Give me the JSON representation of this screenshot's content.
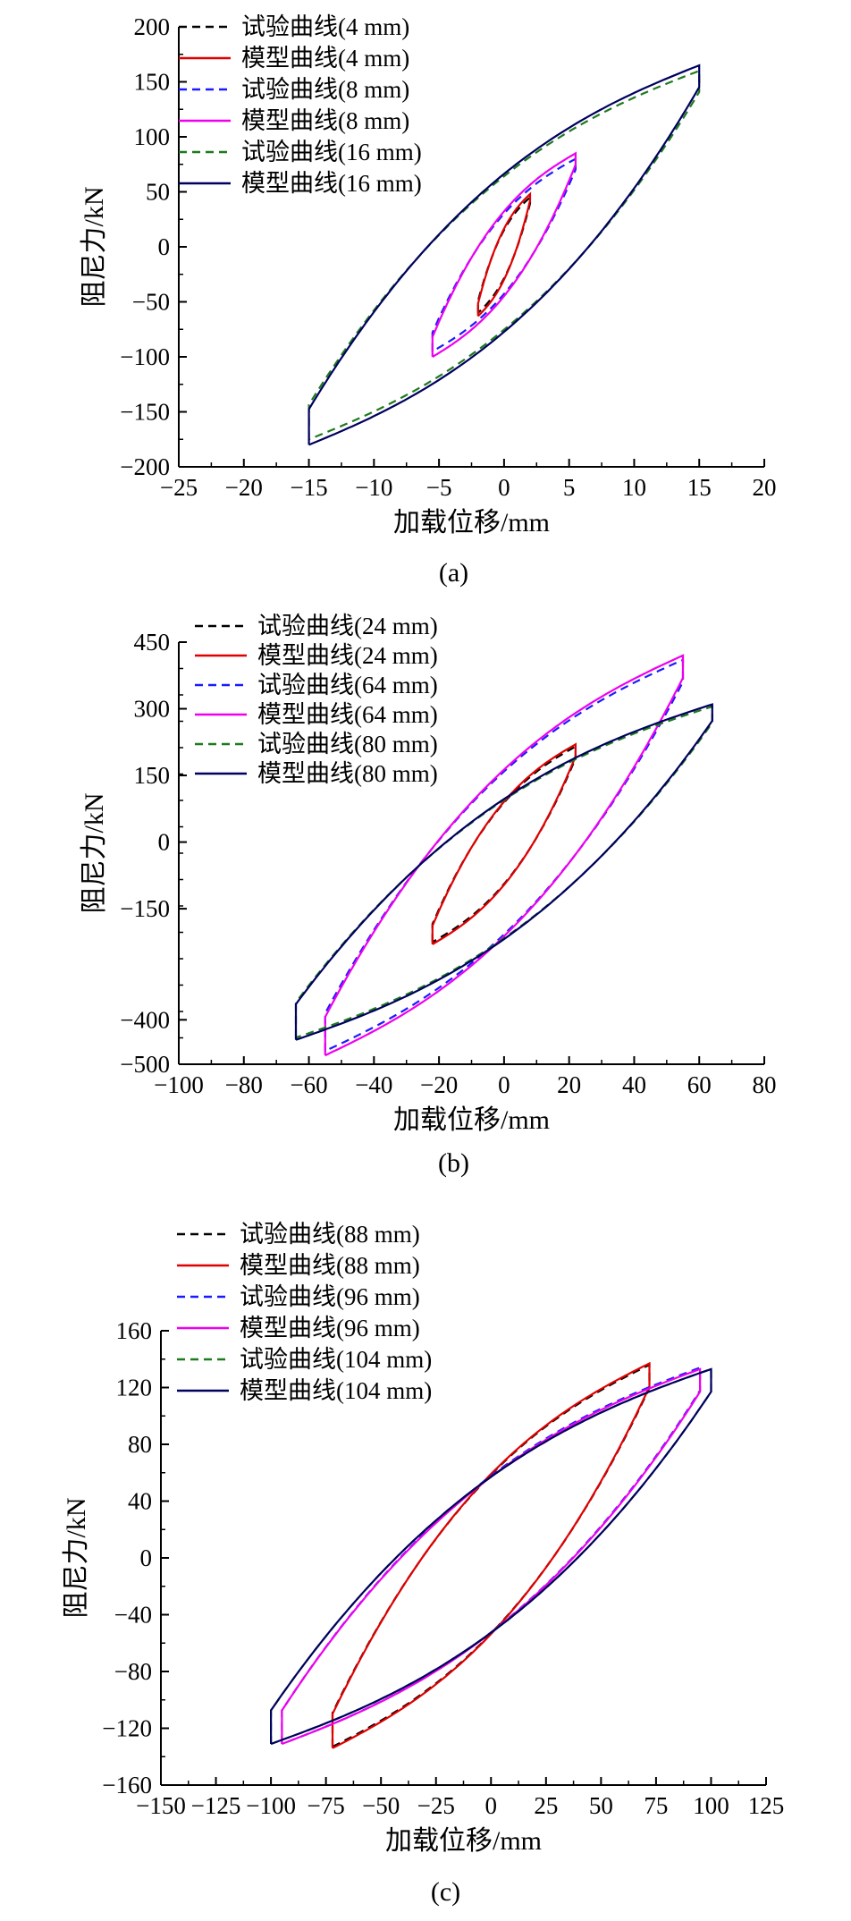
{
  "chart_data": [
    {
      "type": "line",
      "caption": "(a)",
      "xlabel": "加载位移/mm",
      "ylabel": "阻尼力/kN",
      "xlim": [
        -25,
        20
      ],
      "ylim": [
        -200,
        200
      ],
      "xticks": [
        -25,
        -20,
        -15,
        -10,
        -5,
        0,
        5,
        10,
        15,
        20
      ],
      "yticks": [
        -200,
        -150,
        -100,
        -50,
        0,
        50,
        100,
        150,
        200
      ],
      "xtick_labels": [
        "−25",
        "−20",
        "−15",
        "−10",
        "−5",
        "0",
        "5",
        "10",
        "15",
        "20"
      ],
      "ytick_labels": [
        "−200",
        "−150",
        "−100",
        "−50",
        "0",
        "50",
        "100",
        "150",
        "200"
      ],
      "legend_position": "top-left",
      "series": [
        {
          "name": "试验曲线(4 mm)",
          "color": "#000000",
          "style": "dashed",
          "amp": 2,
          "fpos": 45,
          "fneg": -60
        },
        {
          "name": "模型曲线(4 mm)",
          "color": "#e00000",
          "style": "solid",
          "amp": 2,
          "fpos": 48,
          "fneg": -63
        },
        {
          "name": "试验曲线(8 mm)",
          "color": "#1a1aff",
          "style": "dashed",
          "amp": 5.5,
          "fpos": 80,
          "fneg": -95
        },
        {
          "name": "模型曲线(8 mm)",
          "color": "#ee00ee",
          "style": "solid",
          "amp": 5.5,
          "fpos": 85,
          "fneg": -100
        },
        {
          "name": "试验曲线(16 mm)",
          "color": "#1e7a1e",
          "style": "dashed",
          "amp": 15,
          "fpos": 160,
          "fneg": -175
        },
        {
          "name": "模型曲线(16 mm)",
          "color": "#00005e",
          "style": "solid",
          "amp": 15,
          "fpos": 165,
          "fneg": -180
        }
      ]
    },
    {
      "type": "line",
      "caption": "(b)",
      "xlabel": "加载位移/mm",
      "ylabel": "阻尼力/kN",
      "xlim": [
        -100,
        80
      ],
      "ylim": [
        -500,
        450
      ],
      "xticks": [
        -100,
        -80,
        -60,
        -40,
        -20,
        0,
        20,
        40,
        60,
        80
      ],
      "yticks": [
        -500,
        -400,
        -150,
        0,
        150,
        300,
        450
      ],
      "xtick_labels": [
        "−100",
        "−80",
        "−60",
        "−40",
        "−20",
        "0",
        "20",
        "40",
        "60",
        "80"
      ],
      "ytick_labels": [
        "−500",
        "−400",
        "−150",
        "0",
        "150",
        "300",
        "450"
      ],
      "legend_position": "top-left",
      "series": [
        {
          "name": "试验曲线(24 mm)",
          "color": "#000000",
          "style": "dashed",
          "amp": 22,
          "fpos": 215,
          "fneg": -225
        },
        {
          "name": "模型曲线(24 mm)",
          "color": "#e00000",
          "style": "solid",
          "amp": 22,
          "fpos": 220,
          "fneg": -230
        },
        {
          "name": "试验曲线(64 mm)",
          "color": "#1a1aff",
          "style": "dashed",
          "amp": 55,
          "fpos": 410,
          "fneg": -470
        },
        {
          "name": "模型曲线(64 mm)",
          "color": "#ee00ee",
          "style": "solid",
          "amp": 55,
          "fpos": 420,
          "fneg": -480
        },
        {
          "name": "试验曲线(80 mm)",
          "color": "#1e7a1e",
          "style": "dashed",
          "amp": 64,
          "fpos": 305,
          "fneg": -440
        },
        {
          "name": "模型曲线(80 mm)",
          "color": "#00005e",
          "style": "solid",
          "amp": 64,
          "fpos": 310,
          "fneg": -445
        }
      ]
    },
    {
      "type": "line",
      "caption": "(c)",
      "xlabel": "加载位移/mm",
      "ylabel": "阻尼力/kN",
      "xlim": [
        -150,
        125
      ],
      "ylim": [
        -160,
        160
      ],
      "xticks": [
        -150,
        -125,
        -100,
        -75,
        -50,
        -25,
        0,
        25,
        50,
        75,
        100,
        125
      ],
      "yticks": [
        -160,
        -120,
        -80,
        -40,
        0,
        40,
        80,
        120,
        160
      ],
      "xtick_labels": [
        "−150",
        "−125",
        "−100",
        "−75",
        "−50",
        "−25",
        "0",
        "25",
        "50",
        "75",
        "100",
        "125"
      ],
      "ytick_labels": [
        "−160",
        "−120",
        "−80",
        "−40",
        "0",
        "40",
        "80",
        "120",
        "160"
      ],
      "legend_position": "top-left",
      "series": [
        {
          "name": "试验曲线(88 mm)",
          "color": "#000000",
          "style": "dashed",
          "amp": 72,
          "fpos": 136,
          "fneg": -133
        },
        {
          "name": "模型曲线(88 mm)",
          "color": "#e00000",
          "style": "solid",
          "amp": 72,
          "fpos": 137,
          "fneg": -134
        },
        {
          "name": "试验曲线(96 mm)",
          "color": "#1a1aff",
          "style": "dashed",
          "amp": 95,
          "fpos": 134,
          "fneg": -131
        },
        {
          "name": "模型曲线(96 mm)",
          "color": "#ee00ee",
          "style": "solid",
          "amp": 95,
          "fpos": 133,
          "fneg": -131
        },
        {
          "name": "试验曲线(104 mm)",
          "color": "#1e7a1e",
          "style": "dashed",
          "amp": 100,
          "fpos": 133,
          "fneg": -131
        },
        {
          "name": "模型曲线(104 mm)",
          "color": "#00005e",
          "style": "solid",
          "amp": 100,
          "fpos": 133,
          "fneg": -131
        }
      ]
    }
  ]
}
